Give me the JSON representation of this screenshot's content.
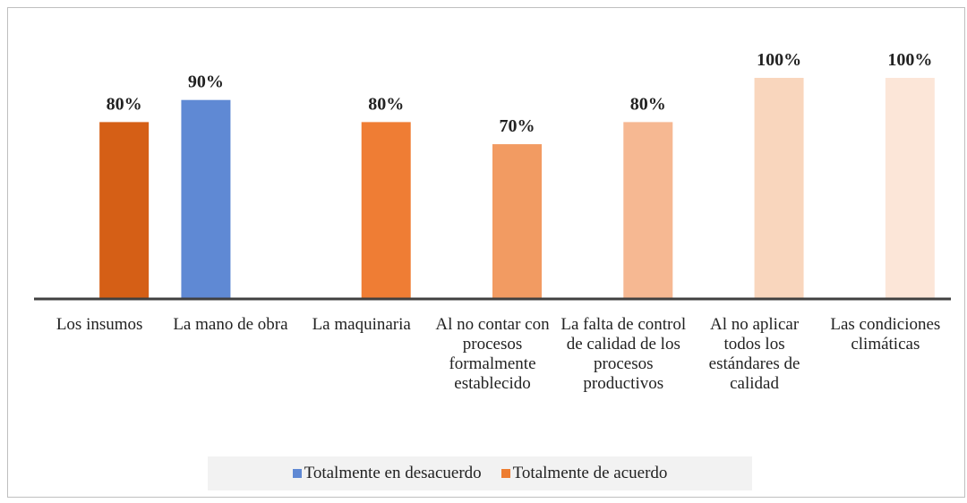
{
  "chart_data": {
    "type": "bar",
    "categories": [
      "Los insumos",
      "La mano de obra",
      "La maquinaria",
      "Al no contar con procesos formalmente establecido",
      "La falta de control de calidad de los procesos productivos",
      "Al no aplicar todos los estándares de calidad",
      "Las condiciones climáticas"
    ],
    "series": [
      {
        "name": "Totalmente en desacuerdo",
        "color": "#5f89d4",
        "values": [
          null,
          90,
          null,
          null,
          null,
          null,
          null
        ],
        "value_labels": [
          null,
          "90%",
          null,
          null,
          null,
          null,
          null
        ]
      },
      {
        "name": "Totalmente de acuerdo",
        "color": "#ed7d31",
        "colors": [
          "#d55f16",
          null,
          "#ef7d34",
          "#f29b62",
          "#f6b892",
          "#f9d6bd",
          "#fce6d8"
        ],
        "values": [
          80,
          null,
          80,
          70,
          80,
          100,
          100
        ],
        "value_labels": [
          "80%",
          null,
          "80%",
          "70%",
          "80%",
          "100%",
          "100%"
        ]
      }
    ],
    "ylim": [
      0,
      100
    ],
    "legend": "bottom"
  }
}
